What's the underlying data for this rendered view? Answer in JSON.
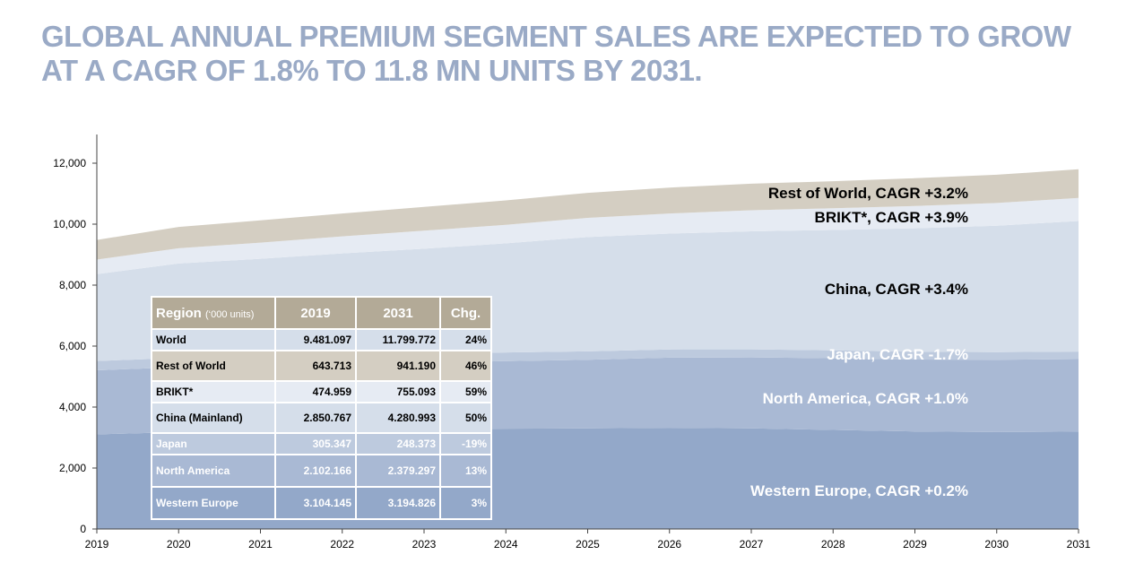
{
  "title": "GLOBAL ANNUAL PREMIUM SEGMENT SALES ARE EXPECTED TO GROW  AT A CAGR OF 1.8% TO 11.8 MN UNITS BY 2031.",
  "chart_data": {
    "type": "area",
    "stacked": true,
    "x": [
      2019,
      2020,
      2021,
      2022,
      2023,
      2024,
      2025,
      2026,
      2027,
      2028,
      2029,
      2030,
      2031
    ],
    "ylim": [
      0,
      13000
    ],
    "yticks": [
      "0",
      "2,000",
      "4,000",
      "6,000",
      "8,000",
      "10,000",
      "12,000"
    ],
    "ytick_values": [
      0,
      2000,
      4000,
      6000,
      8000,
      10000,
      12000
    ],
    "grid": false,
    "series": [
      {
        "name": "Western Europe",
        "color": "#93a8c9",
        "label_color": "#ffffff",
        "label": "Western Europe, CAGR +0.2%",
        "values": [
          3104,
          3180,
          3220,
          3250,
          3270,
          3290,
          3300,
          3320,
          3300,
          3250,
          3200,
          3180,
          3195
        ]
      },
      {
        "name": "North America",
        "color": "#a9b9d4",
        "label_color": "#ffffff",
        "label": "North America, CAGR +1.0%",
        "values": [
          2102,
          2130,
          2150,
          2170,
          2190,
          2220,
          2250,
          2300,
          2330,
          2350,
          2360,
          2370,
          2379
        ]
      },
      {
        "name": "Japan",
        "color": "#bdcade",
        "label_color": "#ffffff",
        "label": "Japan, CAGR  -1.7%",
        "values": [
          305,
          300,
          295,
          290,
          285,
          280,
          275,
          270,
          265,
          260,
          255,
          250,
          248
        ]
      },
      {
        "name": "China (Mainland)",
        "color": "#d5deea",
        "label_color": "#000000",
        "label": "China, CAGR +3.4%",
        "values": [
          2851,
          3100,
          3200,
          3330,
          3450,
          3580,
          3750,
          3800,
          3870,
          3950,
          4050,
          4150,
          4281
        ]
      },
      {
        "name": "BRIKT*",
        "color": "#e6ebf3",
        "label_color": "#000000",
        "label": "BRIKT*, CAGR +3.9%",
        "values": [
          475,
          500,
          530,
          560,
          590,
          610,
          630,
          660,
          690,
          710,
          730,
          745,
          755
        ]
      },
      {
        "name": "Rest of World",
        "color": "#d4cec2",
        "label_color": "#000000",
        "label": "Rest of World, CAGR +3.2%",
        "values": [
          644,
          700,
          730,
          750,
          780,
          800,
          820,
          850,
          870,
          890,
          910,
          925,
          941
        ]
      }
    ]
  },
  "table": {
    "header": {
      "region": "Region",
      "unit": "(‘000 units)",
      "y1": "2019",
      "y2": "2031",
      "chg": "Chg."
    },
    "rows": [
      {
        "region": "World",
        "v2019": "9.481.097",
        "v2031": "11.799.772",
        "chg": "24%",
        "bg": "#d5deea",
        "fg": "#000000"
      },
      {
        "region": "Rest of World",
        "v2019": "643.713",
        "v2031": "941.190",
        "chg": "46%",
        "bg": "#d4cec2",
        "fg": "#000000"
      },
      {
        "region": "BRIKT*",
        "v2019": "474.959",
        "v2031": "755.093",
        "chg": "59%",
        "bg": "#e6ebf3",
        "fg": "#000000"
      },
      {
        "region": "China (Mainland)",
        "v2019": "2.850.767",
        "v2031": "4.280.993",
        "chg": "50%",
        "bg": "#d5deea",
        "fg": "#000000"
      },
      {
        "region": "Japan",
        "v2019": "305.347",
        "v2031": "248.373",
        "chg": "-19%",
        "bg": "#bdcade",
        "fg": "#ffffff"
      },
      {
        "region": "North America",
        "v2019": "2.102.166",
        "v2031": "2.379.297",
        "chg": "13%",
        "bg": "#a9b9d4",
        "fg": "#ffffff"
      },
      {
        "region": "Western Europe",
        "v2019": "3.104.145",
        "v2031": "3.194.826",
        "chg": "3%",
        "bg": "#93a8c9",
        "fg": "#ffffff"
      }
    ]
  }
}
